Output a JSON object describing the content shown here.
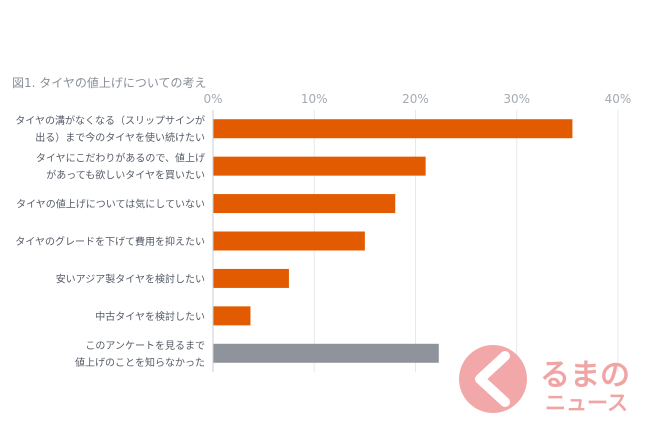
{
  "chart_data": {
    "type": "bar",
    "orientation": "horizontal",
    "title": "図1. タイヤの値上げについての考え",
    "xlim": [
      0,
      40
    ],
    "x_ticks": [
      "0%",
      "10%",
      "20%",
      "30%",
      "40%"
    ],
    "grid": true,
    "categories": [
      [
        "タイヤの溝がなくなる（スリップサインが",
        "出る）まで今のタイヤを使い続けたい"
      ],
      [
        "タイヤにこだわりがあるので、値上げ",
        "があっても欲しいタイヤを買いたい"
      ],
      [
        "タイヤの値上げについては気にしていない"
      ],
      [
        "タイヤのグレードを下げて費用を抑えたい"
      ],
      [
        "安いアジア製タイヤを検討したい"
      ],
      [
        "中古タイヤを検討したい"
      ],
      [
        "このアンケートを見るまで",
        "値上げのことを知らなかった"
      ]
    ],
    "values": [
      35.5,
      21,
      18,
      15,
      7.5,
      3.7,
      22.3
    ],
    "bar_colors": [
      "#e35b00",
      "#e35b00",
      "#e35b00",
      "#e35b00",
      "#e35b00",
      "#e35b00",
      "#8f939b"
    ]
  },
  "logo": {
    "line1": "るまの",
    "line2": "ニュース",
    "circle_color": "#f2a8a8",
    "text_color": "#f0a5a5"
  }
}
